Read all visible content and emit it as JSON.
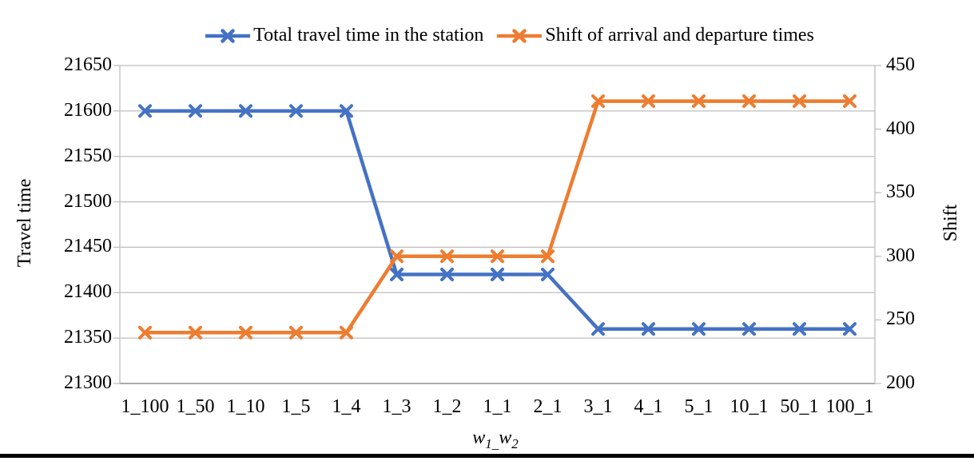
{
  "chart_data": {
    "type": "line",
    "title": "",
    "categories": [
      "1_100",
      "1_50",
      "1_10",
      "1_5",
      "1_4",
      "1_3",
      "1_2",
      "1_1",
      "2_1",
      "3_1",
      "4_1",
      "5_1",
      "10_1",
      "50_1",
      "100_1"
    ],
    "series": [
      {
        "name": "Total travel time in the station",
        "axis": "left",
        "color": "#4472C4",
        "marker": "x",
        "values": [
          21600,
          21600,
          21600,
          21600,
          21600,
          21420,
          21420,
          21420,
          21420,
          21360,
          21360,
          21360,
          21360,
          21360,
          21360
        ]
      },
      {
        "name": "Shift of arrival and departure times",
        "axis": "right",
        "color": "#ED7D31",
        "marker": "x",
        "values": [
          240,
          240,
          240,
          240,
          240,
          300,
          300,
          300,
          300,
          422,
          422,
          422,
          422,
          422,
          422
        ]
      }
    ],
    "left_axis": {
      "title": "Travel time",
      "min": 21300,
      "max": 21650,
      "step": 50
    },
    "right_axis": {
      "title": "Shift",
      "min": 200,
      "max": 450,
      "step": 50
    },
    "x_axis": {
      "title": "w1_w2",
      "title_parts": {
        "base1": "w",
        "sub1": "1",
        "sep": "_",
        "base2": "w",
        "sub2": "2"
      }
    },
    "legend_position": "top",
    "grid": "horizontal"
  },
  "colors": {
    "gridline": "#BEBEBE",
    "axis_line": "#ABABAB",
    "footer_bar": "#000000"
  }
}
